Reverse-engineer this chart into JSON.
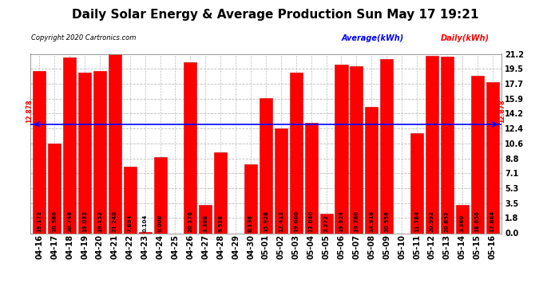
{
  "title": "Daily Solar Energy & Average Production Sun May 17 19:21",
  "copyright": "Copyright 2020 Cartronics.com",
  "legend_average": "Average(kWh)",
  "legend_daily": "Daily(kWh)",
  "average_value": 12.878,
  "categories": [
    "04-16",
    "04-17",
    "04-18",
    "04-19",
    "04-20",
    "04-21",
    "04-22",
    "04-23",
    "04-24",
    "04-25",
    "04-26",
    "04-27",
    "04-28",
    "04-29",
    "04-30",
    "05-01",
    "05-02",
    "05-03",
    "05-04",
    "05-05",
    "05-06",
    "05-07",
    "05-08",
    "05-09",
    "05-10",
    "05-11",
    "05-12",
    "05-13",
    "05-14",
    "05-15",
    "05-16"
  ],
  "values": [
    19.172,
    10.58,
    20.748,
    19.032,
    19.152,
    21.24,
    7.894,
    0.104,
    9.008,
    0.0,
    20.176,
    3.368,
    9.528,
    0.0,
    8.136,
    15.928,
    12.412,
    19.0,
    13.04,
    2.272,
    19.924,
    19.78,
    14.916,
    20.556,
    0.0,
    11.784,
    20.992,
    20.852,
    3.36,
    18.656,
    17.864
  ],
  "bar_color": "#FF0000",
  "bar_edge_color": "#CC0000",
  "average_line_color": "#0000FF",
  "average_label_color": "#FF0000",
  "title_color": "#000000",
  "copyright_color": "#000000",
  "background_color": "#FFFFFF",
  "grid_color": "#BBBBBB",
  "yticks": [
    0.0,
    1.8,
    3.5,
    5.3,
    7.1,
    8.8,
    10.6,
    12.4,
    14.2,
    15.9,
    17.7,
    19.5,
    21.2
  ],
  "ylim": [
    0.0,
    21.2
  ],
  "title_fontsize": 11,
  "tick_fontsize": 7,
  "bar_label_fontsize": 5.0,
  "average_label": "12.878"
}
